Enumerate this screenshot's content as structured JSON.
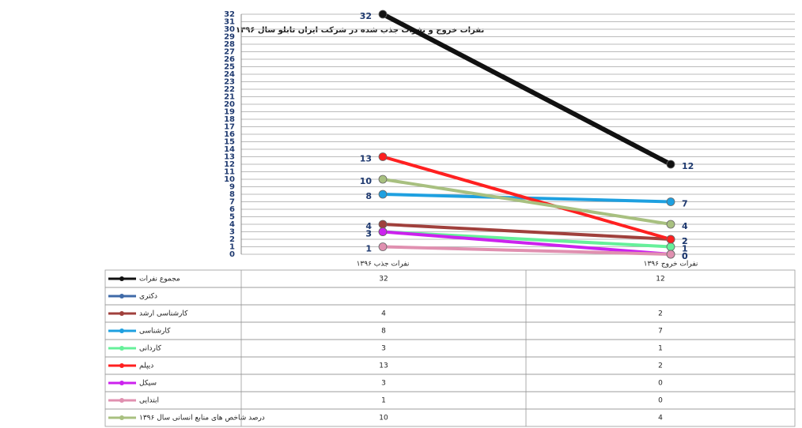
{
  "chart_data": {
    "type": "line",
    "title": "نفرات خروج و نفرات جذب شده در شرکت ایران تابلو سال ۱۳۹۶",
    "categories": [
      "نفرات جذب ۱۳۹۶",
      "نفرات خروج ۱۳۹۶"
    ],
    "series": [
      {
        "name": "مجموع نفرات",
        "color": "#111111",
        "values": [
          32,
          12
        ]
      },
      {
        "name": "دکتری",
        "color": "#3f6aa8",
        "values": [
          null,
          null
        ]
      },
      {
        "name": "کارشناسی ارشد",
        "color": "#a0403c",
        "values": [
          4,
          2
        ]
      },
      {
        "name": "کارشناسی",
        "color": "#1ea0e0",
        "values": [
          8,
          7
        ]
      },
      {
        "name": "کاردانی",
        "color": "#66f09a",
        "values": [
          3,
          1
        ]
      },
      {
        "name": "دیپلم",
        "color": "#ff2020",
        "values": [
          13,
          2
        ]
      },
      {
        "name": "سیکل",
        "color": "#cc22ee",
        "values": [
          3,
          0
        ]
      },
      {
        "name": "ابتدایی",
        "color": "#e090b0",
        "values": [
          1,
          0
        ]
      },
      {
        "name": "درصد شاخص های منابع انسانی سال ۱۳۹۶",
        "color": "#a8c080",
        "values": [
          10,
          4
        ]
      }
    ],
    "ylim": [
      0,
      32
    ],
    "yticks": [
      0,
      1,
      2,
      3,
      4,
      5,
      6,
      7,
      8,
      9,
      10,
      11,
      12,
      13,
      14,
      15,
      16,
      17,
      18,
      19,
      20,
      21,
      22,
      23,
      24,
      25,
      26,
      27,
      28,
      29,
      30,
      31,
      32
    ],
    "grid": true
  }
}
